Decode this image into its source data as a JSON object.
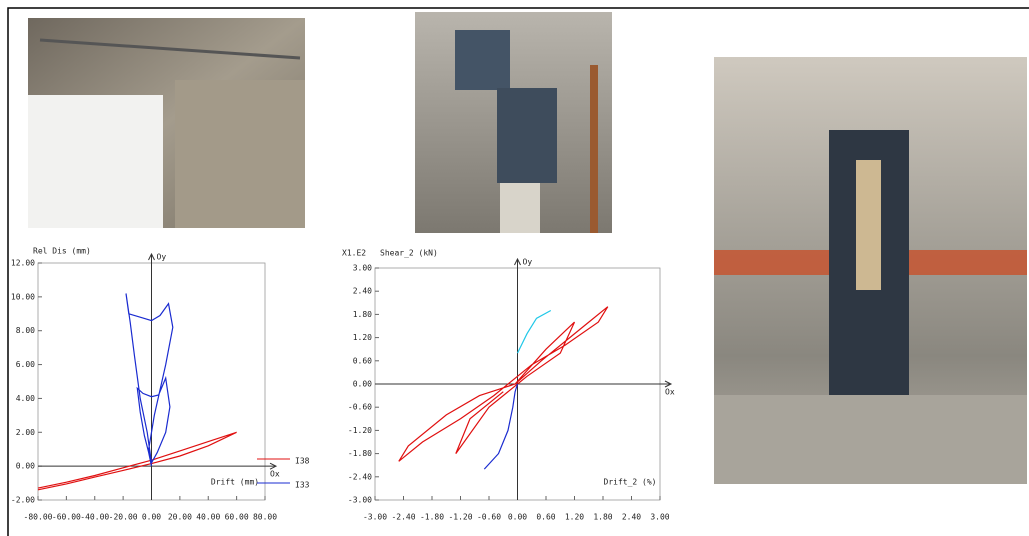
{
  "chart_data": [
    {
      "type": "line",
      "ylabel": "Rel Dis (mm)",
      "xlabel": "Drift (mm)",
      "x_axis_name": "Ox",
      "y_axis_name": "Oy",
      "xlim": [
        -80,
        80
      ],
      "ylim": [
        -2,
        12
      ],
      "legend": true,
      "legend_position": "right",
      "xticks": [
        {
          "value": -80,
          "label": "-80.00"
        },
        {
          "value": -60,
          "label": "-60.00"
        },
        {
          "value": -40,
          "label": "-40.00"
        },
        {
          "value": -20,
          "label": "-20.00"
        },
        {
          "value": 0,
          "label": "0.00"
        },
        {
          "value": 20,
          "label": "20.00"
        },
        {
          "value": 40,
          "label": "40.00"
        },
        {
          "value": 60,
          "label": "60.00"
        },
        {
          "value": 80,
          "label": "80.00"
        }
      ],
      "yticks": [
        {
          "value": -2,
          "label": "-2.00"
        },
        {
          "value": 0,
          "label": "0.00"
        },
        {
          "value": 2,
          "label": "2.00"
        },
        {
          "value": 4,
          "label": "4.00"
        },
        {
          "value": 6,
          "label": "6.00"
        },
        {
          "value": 8,
          "label": "8.00"
        },
        {
          "value": 10,
          "label": "10.00"
        },
        {
          "value": 12,
          "label": "12.00"
        }
      ],
      "series": [
        {
          "name": "I38",
          "color": "#e01010",
          "x": [
            -80,
            -60,
            -40,
            -20,
            0,
            20,
            40,
            60,
            40,
            20,
            0,
            -20,
            -40,
            -60,
            -80
          ],
          "values": [
            -1.4,
            -1.05,
            -0.65,
            -0.25,
            0.15,
            0.6,
            1.2,
            2.0,
            1.45,
            0.9,
            0.35,
            -0.1,
            -0.55,
            -0.95,
            -1.3
          ]
        },
        {
          "name": "I33",
          "color": "#1a2bd0",
          "x": [
            0,
            -2,
            -5,
            -8,
            -10,
            -6,
            0,
            5,
            10,
            13,
            10,
            4,
            0,
            -3,
            -8,
            -12,
            -15,
            -18,
            -16,
            -8,
            0,
            6,
            12,
            15,
            10,
            2,
            -2,
            0
          ],
          "values": [
            0,
            0.8,
            1.8,
            3.2,
            4.6,
            4.3,
            4.1,
            4.2,
            5.2,
            3.5,
            2.0,
            0.8,
            0.2,
            2.0,
            4.0,
            6.5,
            8.5,
            10.2,
            9.0,
            8.8,
            8.6,
            8.9,
            9.6,
            8.2,
            6.0,
            3.0,
            1.0,
            0.3
          ]
        }
      ]
    },
    {
      "type": "line",
      "scale_label": "X1.E2",
      "ylabel": "Shear_2 (kN)",
      "xlabel": "Drift_2 (%)",
      "x_axis_name": "Ox",
      "y_axis_name": "Oy",
      "xlim": [
        -3,
        3
      ],
      "ylim": [
        -3,
        3
      ],
      "legend": false,
      "xticks": [
        {
          "value": -3,
          "label": "-3.00"
        },
        {
          "value": -2.4,
          "label": "-2.40"
        },
        {
          "value": -1.8,
          "label": "-1.80"
        },
        {
          "value": -1.2,
          "label": "-1.20"
        },
        {
          "value": -0.6,
          "label": "-0.60"
        },
        {
          "value": 0,
          "label": "0.00"
        },
        {
          "value": 0.6,
          "label": "0.60"
        },
        {
          "value": 1.2,
          "label": "1.20"
        },
        {
          "value": 1.8,
          "label": "1.80"
        },
        {
          "value": 2.4,
          "label": "2.40"
        },
        {
          "value": 3,
          "label": "3.00"
        }
      ],
      "yticks": [
        {
          "value": -3,
          "label": "-3.00"
        },
        {
          "value": -2.4,
          "label": "-2.40"
        },
        {
          "value": -1.8,
          "label": "-1.80"
        },
        {
          "value": -1.2,
          "label": "-1.20"
        },
        {
          "value": -0.6,
          "label": "-0.60"
        },
        {
          "value": 0,
          "label": "0.00"
        },
        {
          "value": 0.6,
          "label": "0.60"
        },
        {
          "value": 1.2,
          "label": "1.20"
        },
        {
          "value": 1.8,
          "label": "1.80"
        },
        {
          "value": 2.4,
          "label": "2.40"
        },
        {
          "value": 3,
          "label": "3.00"
        }
      ],
      "series": [
        {
          "color": "#e01010",
          "x": [
            -0.05,
            0.5,
            1.0,
            1.5,
            1.9,
            1.7,
            1.0,
            0.3,
            -0.5,
            -1.2,
            -2.0,
            -2.5,
            -2.3,
            -1.5,
            -0.8,
            -0.05,
            0.6,
            1.2,
            0.9,
            0.2,
            -0.6,
            -1.3,
            -1.0,
            -0.3
          ],
          "values": [
            0,
            0.6,
            1.1,
            1.6,
            2.0,
            1.6,
            1.0,
            0.5,
            -0.3,
            -0.9,
            -1.5,
            -2.0,
            -1.6,
            -0.8,
            -0.3,
            0,
            0.9,
            1.6,
            0.8,
            0.2,
            -0.6,
            -1.8,
            -0.9,
            -0.2
          ]
        },
        {
          "color": "#1a2bd0",
          "x": [
            0,
            -0.05,
            -0.1,
            -0.2,
            -0.4,
            -0.7
          ],
          "values": [
            0,
            -0.2,
            -0.6,
            -1.2,
            -1.8,
            -2.2
          ]
        },
        {
          "color": "#20c8e8",
          "x": [
            0,
            0.2,
            0.4,
            0.7
          ],
          "values": [
            0.8,
            1.3,
            1.7,
            1.9
          ]
        }
      ]
    }
  ]
}
